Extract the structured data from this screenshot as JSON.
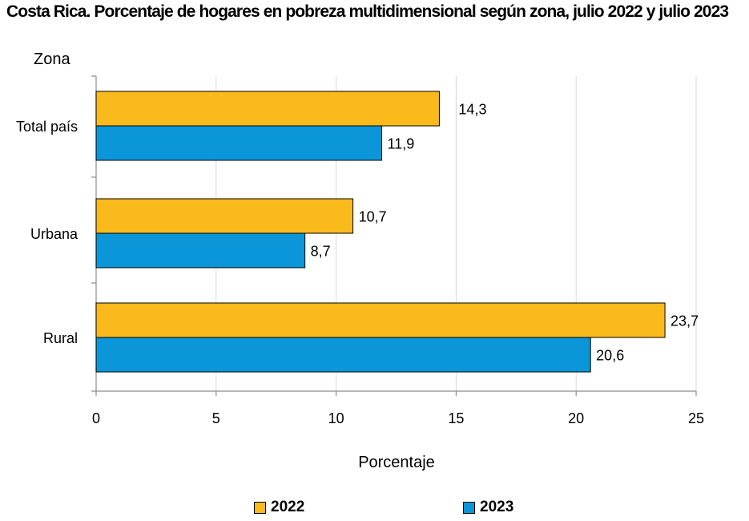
{
  "chart_data": {
    "type": "bar",
    "orientation": "horizontal",
    "title": "Costa Rica. Porcentaje de hogares en pobreza multidimensional según zona, julio 2022 y julio 2023",
    "ylabel": "Zona",
    "xlabel": "Porcentaje",
    "categories": [
      "Total país",
      "Urbana",
      "Rural"
    ],
    "series": [
      {
        "name": "2022",
        "color": "#FBBA1B",
        "values": [
          14.3,
          10.7,
          23.7
        ],
        "labels": [
          "14,3",
          "10,7",
          "23,7"
        ]
      },
      {
        "name": "2023",
        "color": "#0A96D8",
        "values": [
          11.9,
          8.7,
          20.6
        ],
        "labels": [
          "11,9",
          "8,7",
          "20,6"
        ]
      }
    ],
    "xlim": [
      0,
      25
    ],
    "xticks": [
      0,
      5,
      10,
      15,
      20,
      25
    ],
    "xtick_labels": [
      "0",
      "5",
      "10",
      "15",
      "20",
      "25"
    ],
    "grid": true,
    "legend_position": "bottom"
  }
}
